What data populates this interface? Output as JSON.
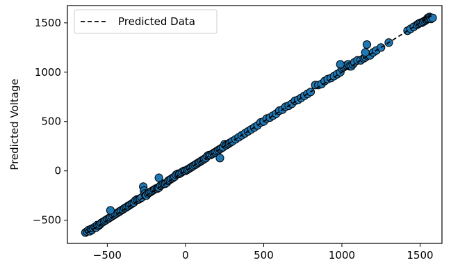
{
  "chart_data": {
    "type": "scatter",
    "title": "",
    "xlabel": "",
    "ylabel": "Predicted Voltage",
    "xlim": [
      -755,
      1640
    ],
    "ylim": [
      -735,
      1675
    ],
    "xticks": [
      -500,
      0,
      500,
      1000,
      1500
    ],
    "yticks": [
      -500,
      0,
      500,
      1000,
      1500
    ],
    "xtick_labels": [
      "−500",
      "0",
      "500",
      "1000",
      "1500"
    ],
    "ytick_labels": [
      "−500",
      "0",
      "500",
      "1000",
      "1500"
    ],
    "grid": false,
    "legend": {
      "position": "top-left",
      "entries": [
        {
          "label": "Predicted Data",
          "style": "dashed-line",
          "color": "#000000"
        }
      ]
    },
    "series": [
      {
        "kind": "line",
        "style": "dashed",
        "color": "#000000",
        "x": [
          -630,
          1575
        ],
        "y": [
          -630,
          1575
        ]
      },
      {
        "kind": "scatter",
        "color": "#1f77b4",
        "edgecolor": "#000000",
        "x": [
          -640,
          -630,
          -620,
          -612,
          -605,
          -598,
          -590,
          -580,
          -572,
          -565,
          -555,
          -548,
          -540,
          -530,
          -520,
          -510,
          -500,
          -490,
          -480,
          -470,
          -460,
          -450,
          -440,
          -430,
          -420,
          -410,
          -400,
          -390,
          -380,
          -370,
          -360,
          -350,
          -340,
          -330,
          -320,
          -310,
          -300,
          -290,
          -280,
          -270,
          -265,
          -260,
          -255,
          -250,
          -240,
          -230,
          -220,
          -210,
          -200,
          -190,
          -180,
          -175,
          -170,
          -160,
          -150,
          -140,
          -130,
          -120,
          -110,
          -100,
          -90,
          -80,
          -70,
          -60,
          -50,
          -40,
          -30,
          -20,
          -10,
          0,
          10,
          20,
          30,
          40,
          50,
          60,
          70,
          80,
          90,
          100,
          110,
          120,
          130,
          140,
          150,
          160,
          170,
          180,
          190,
          200,
          210,
          220,
          230,
          240,
          250,
          260,
          270,
          280,
          290,
          300,
          320,
          340,
          360,
          380,
          400,
          420,
          440,
          460,
          480,
          500,
          520,
          540,
          560,
          580,
          600,
          620,
          640,
          660,
          680,
          700,
          720,
          740,
          760,
          780,
          800,
          830,
          850,
          870,
          890,
          910,
          930,
          950,
          970,
          990,
          1000,
          1010,
          1020,
          1030,
          1040,
          1050,
          1060,
          1070,
          1080,
          1100,
          1120,
          1140,
          1150,
          1160,
          1180,
          1200,
          1220,
          1250,
          1300,
          1420,
          1440,
          1460,
          1480,
          1490,
          1500,
          1510,
          1520,
          1530,
          1540,
          1545,
          1550,
          1555,
          1560,
          1565,
          1570,
          1580,
          -480,
          -170,
          220,
          1160,
          990,
          1150
        ],
        "y": [
          -625,
          -615,
          -600,
          -612,
          -590,
          -598,
          -580,
          -570,
          -575,
          -550,
          -555,
          -545,
          -530,
          -520,
          -510,
          -500,
          -490,
          -480,
          -470,
          -460,
          -450,
          -440,
          -430,
          -420,
          -410,
          -400,
          -390,
          -380,
          -370,
          -360,
          -350,
          -340,
          -330,
          -320,
          -300,
          -290,
          -290,
          -280,
          -270,
          -160,
          -200,
          -230,
          -250,
          -250,
          -230,
          -220,
          -210,
          -200,
          -190,
          -180,
          -180,
          -170,
          -170,
          -150,
          -140,
          -130,
          -130,
          -120,
          -100,
          -90,
          -80,
          -70,
          -60,
          -40,
          -30,
          -30,
          -20,
          -10,
          0,
          0,
          10,
          20,
          30,
          40,
          50,
          60,
          70,
          80,
          90,
          100,
          110,
          120,
          130,
          150,
          160,
          160,
          170,
          180,
          190,
          200,
          210,
          220,
          230,
          240,
          270,
          260,
          270,
          280,
          290,
          300,
          320,
          340,
          360,
          380,
          400,
          420,
          440,
          460,
          490,
          500,
          530,
          540,
          560,
          580,
          610,
          620,
          650,
          660,
          680,
          710,
          720,
          740,
          760,
          780,
          800,
          870,
          870,
          880,
          910,
          930,
          940,
          960,
          980,
          1000,
          1040,
          1050,
          1060,
          1070,
          1080,
          1060,
          1060,
          1080,
          1100,
          1120,
          1120,
          1140,
          1150,
          1170,
          1170,
          1200,
          1220,
          1250,
          1300,
          1420,
          1440,
          1460,
          1480,
          1490,
          1500,
          1500,
          1510,
          1520,
          1530,
          1540,
          1550,
          1545,
          1560,
          1550,
          1540,
          1550,
          -400,
          -70,
          130,
          1280,
          1080,
          1200
        ]
      }
    ]
  }
}
